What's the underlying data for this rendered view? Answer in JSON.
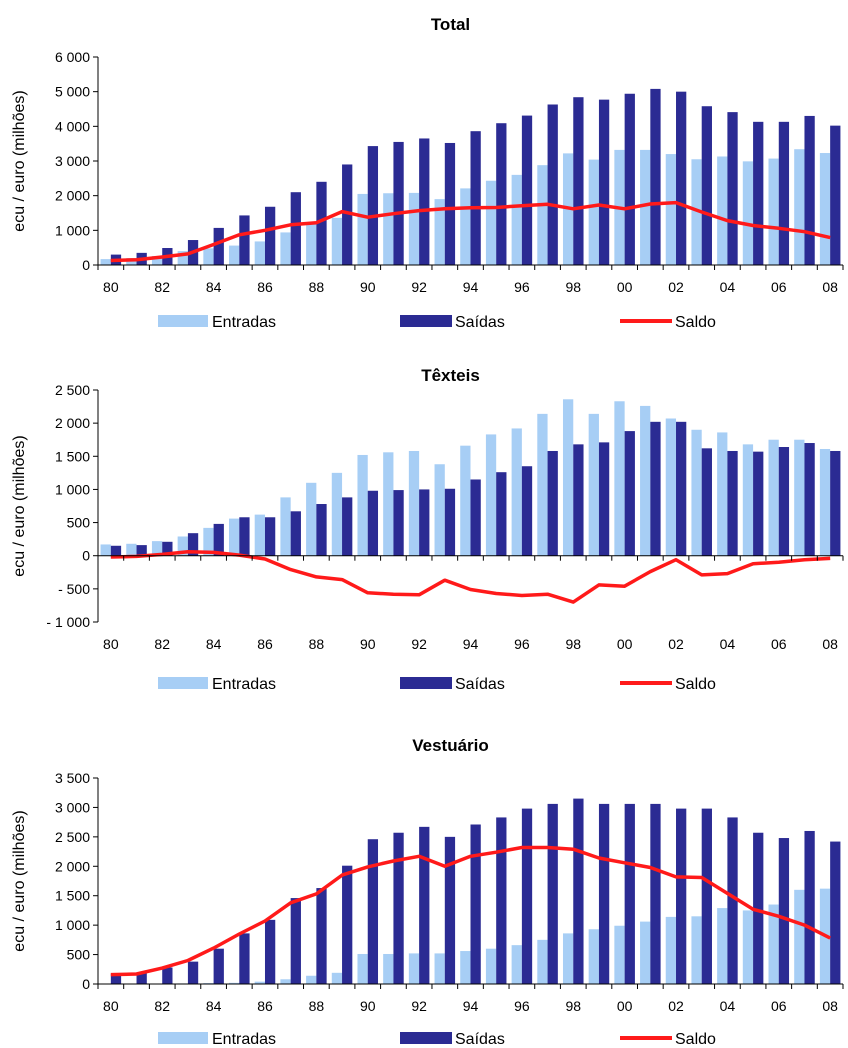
{
  "colors": {
    "entradas": "#a7cef5",
    "saidas": "#2b2b93",
    "saldo": "#ff1a1a",
    "axis": "#000000"
  },
  "chart_data": [
    {
      "type": "bar",
      "title": "Total",
      "ylabel": "ecu / euro (milhões)",
      "ylim": [
        0,
        6000
      ],
      "yticks": [
        0,
        1000,
        2000,
        3000,
        4000,
        5000,
        6000
      ],
      "ytick_labels": [
        "0",
        "1 000",
        "2 000",
        "3 000",
        "4 000",
        "5 000",
        "6 000"
      ],
      "categories": [
        "80",
        "81",
        "82",
        "83",
        "84",
        "85",
        "86",
        "87",
        "88",
        "89",
        "90",
        "91",
        "92",
        "93",
        "94",
        "95",
        "96",
        "97",
        "98",
        "99",
        "00",
        "01",
        "02",
        "03",
        "04",
        "05",
        "06",
        "07",
        "08"
      ],
      "xtick_labels": [
        "80",
        "82",
        "84",
        "86",
        "88",
        "90",
        "92",
        "94",
        "96",
        "98",
        "00",
        "02",
        "04",
        "06",
        "08"
      ],
      "series": [
        {
          "name": "Entradas",
          "type": "bar",
          "values": [
            170,
            200,
            260,
            400,
            480,
            560,
            680,
            940,
            1180,
            1360,
            2050,
            2070,
            2080,
            1900,
            2210,
            2430,
            2600,
            2880,
            3220,
            3040,
            3320,
            3320,
            3200,
            3050,
            3130,
            2990,
            3070,
            3340,
            3230
          ]
        },
        {
          "name": "Saídas",
          "type": "bar",
          "values": [
            300,
            350,
            490,
            720,
            1070,
            1430,
            1680,
            2100,
            2400,
            2900,
            3430,
            3550,
            3650,
            3520,
            3860,
            4090,
            4310,
            4630,
            4840,
            4770,
            4940,
            5080,
            5000,
            4580,
            4410,
            4130,
            4130,
            4300,
            4020
          ]
        },
        {
          "name": "Saldo",
          "type": "line",
          "values": [
            130,
            150,
            230,
            320,
            590,
            870,
            1000,
            1160,
            1220,
            1540,
            1380,
            1480,
            1570,
            1620,
            1650,
            1660,
            1710,
            1750,
            1620,
            1730,
            1620,
            1760,
            1800,
            1530,
            1280,
            1140,
            1060,
            960,
            790
          ]
        }
      ],
      "legend": "bottom"
    },
    {
      "type": "bar",
      "title": "Têxteis",
      "ylabel": "ecu / euro (milhões)",
      "ylim": [
        -1000,
        2500
      ],
      "yticks": [
        -1000,
        -500,
        0,
        500,
        1000,
        1500,
        2000,
        2500
      ],
      "ytick_labels": [
        "- 1 000",
        "- 500",
        "0",
        "500",
        "1 000",
        "1 500",
        "2 000",
        "2 500"
      ],
      "categories": [
        "80",
        "81",
        "82",
        "83",
        "84",
        "85",
        "86",
        "87",
        "88",
        "89",
        "90",
        "91",
        "92",
        "93",
        "94",
        "95",
        "96",
        "97",
        "98",
        "99",
        "00",
        "01",
        "02",
        "03",
        "04",
        "05",
        "06",
        "07",
        "08"
      ],
      "xtick_labels": [
        "80",
        "82",
        "84",
        "86",
        "88",
        "90",
        "92",
        "94",
        "96",
        "98",
        "00",
        "02",
        "04",
        "06",
        "08"
      ],
      "series": [
        {
          "name": "Entradas",
          "type": "bar",
          "values": [
            170,
            180,
            220,
            290,
            420,
            560,
            620,
            880,
            1100,
            1250,
            1520,
            1560,
            1580,
            1380,
            1660,
            1830,
            1920,
            2140,
            2360,
            2140,
            2330,
            2260,
            2070,
            1900,
            1860,
            1680,
            1750,
            1750,
            1610
          ]
        },
        {
          "name": "Saídas",
          "type": "bar",
          "values": [
            150,
            160,
            210,
            340,
            480,
            580,
            580,
            670,
            780,
            880,
            980,
            990,
            1000,
            1010,
            1150,
            1260,
            1350,
            1580,
            1680,
            1710,
            1880,
            2020,
            2020,
            1620,
            1580,
            1570,
            1640,
            1700,
            1580
          ]
        },
        {
          "name": "Saldo",
          "type": "line",
          "values": [
            -20,
            -10,
            20,
            60,
            50,
            10,
            -50,
            -210,
            -320,
            -360,
            -560,
            -580,
            -590,
            -370,
            -510,
            -570,
            -600,
            -580,
            -700,
            -440,
            -460,
            -240,
            -60,
            -290,
            -270,
            -120,
            -100,
            -60,
            -40
          ]
        }
      ],
      "legend": "bottom"
    },
    {
      "type": "bar",
      "title": "Vestuário",
      "ylabel": "ecu / euro (milhões)",
      "ylim": [
        0,
        3500
      ],
      "yticks": [
        0,
        500,
        1000,
        1500,
        2000,
        2500,
        3000,
        3500
      ],
      "ytick_labels": [
        "0",
        "500",
        "1 000",
        "1 500",
        "2 000",
        "2 500",
        "3 000",
        "3 500"
      ],
      "categories": [
        "80",
        "81",
        "82",
        "83",
        "84",
        "85",
        "86",
        "87",
        "88",
        "89",
        "90",
        "91",
        "92",
        "93",
        "94",
        "95",
        "96",
        "97",
        "98",
        "99",
        "00",
        "01",
        "02",
        "03",
        "04",
        "05",
        "06",
        "07",
        "08"
      ],
      "xtick_labels": [
        "80",
        "82",
        "84",
        "86",
        "88",
        "90",
        "92",
        "94",
        "96",
        "98",
        "00",
        "02",
        "04",
        "06",
        "08"
      ],
      "series": [
        {
          "name": "Entradas",
          "type": "bar",
          "values": [
            5,
            5,
            5,
            10,
            15,
            20,
            40,
            80,
            140,
            190,
            510,
            510,
            520,
            520,
            560,
            600,
            660,
            750,
            860,
            930,
            990,
            1060,
            1140,
            1150,
            1290,
            1250,
            1350,
            1600,
            1620
          ]
        },
        {
          "name": "Saídas",
          "type": "bar",
          "values": [
            170,
            190,
            280,
            380,
            600,
            860,
            1090,
            1460,
            1630,
            2010,
            2460,
            2570,
            2670,
            2500,
            2710,
            2830,
            2980,
            3060,
            3150,
            3060,
            3060,
            3060,
            2980,
            2980,
            2830,
            2570,
            2480,
            2600,
            2420
          ]
        },
        {
          "name": "Saldo",
          "type": "line",
          "values": [
            160,
            170,
            270,
            400,
            610,
            850,
            1070,
            1380,
            1530,
            1850,
            1990,
            2090,
            2170,
            2000,
            2170,
            2240,
            2320,
            2320,
            2290,
            2140,
            2060,
            1980,
            1820,
            1810,
            1540,
            1270,
            1150,
            1000,
            780
          ]
        }
      ],
      "legend": "bottom"
    }
  ]
}
